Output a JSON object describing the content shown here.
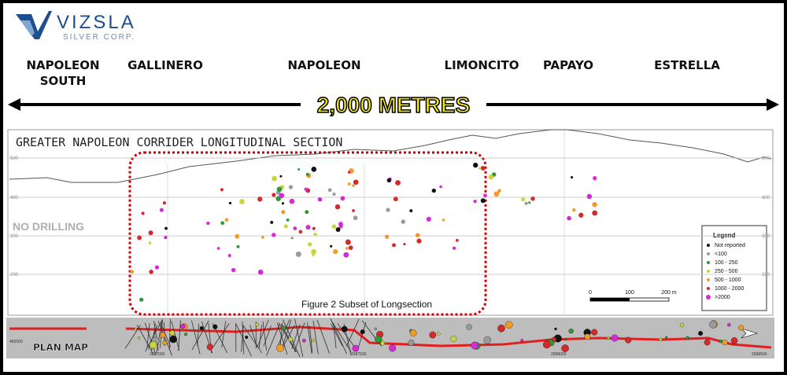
{
  "header": {
    "logo": "VIZSLA",
    "logo_subtitle": "SILVER CORP."
  },
  "zones": [
    {
      "lines": [
        "NAPOLEON",
        "SOUTH"
      ]
    },
    {
      "lines": [
        "GALLINERO"
      ]
    },
    {
      "lines": [
        "NAPOLEON"
      ]
    },
    {
      "lines": [
        "LIMONCITO"
      ]
    },
    {
      "lines": [
        "PAPAYO"
      ]
    },
    {
      "lines": [
        "ESTRELLA"
      ]
    }
  ],
  "distance": "2,000 METRES",
  "section": {
    "title": "GREATER NAPOLEON CORRIDER LONGITUDINAL SECTION",
    "elevations": [
      "500",
      "400",
      "300",
      "200"
    ],
    "no_drilling": "NO DRILLING",
    "subset_caption": "Figure 2 Subset of Longsection",
    "legend": {
      "title": "Legend",
      "items": [
        {
          "label": "Not reported",
          "color": "#111111"
        },
        {
          "label": "<100",
          "color": "#9a9a9a"
        },
        {
          "label": "100 - 250",
          "color": "#2e9a3a"
        },
        {
          "label": "250 - 500",
          "color": "#c9d63a"
        },
        {
          "label": "500 - 1000",
          "color": "#f09a2a"
        },
        {
          "label": "1000 - 2000",
          "color": "#d42a2a"
        },
        {
          "label": ">2000",
          "color": "#d62ad6"
        }
      ]
    },
    "scale": [
      "0",
      "100",
      "200 m"
    ]
  },
  "plan_map": {
    "title": "PLAN MAP",
    "coordinates": [
      "483500",
      "2587000",
      "2587500",
      "2588000",
      "2588500"
    ]
  }
}
